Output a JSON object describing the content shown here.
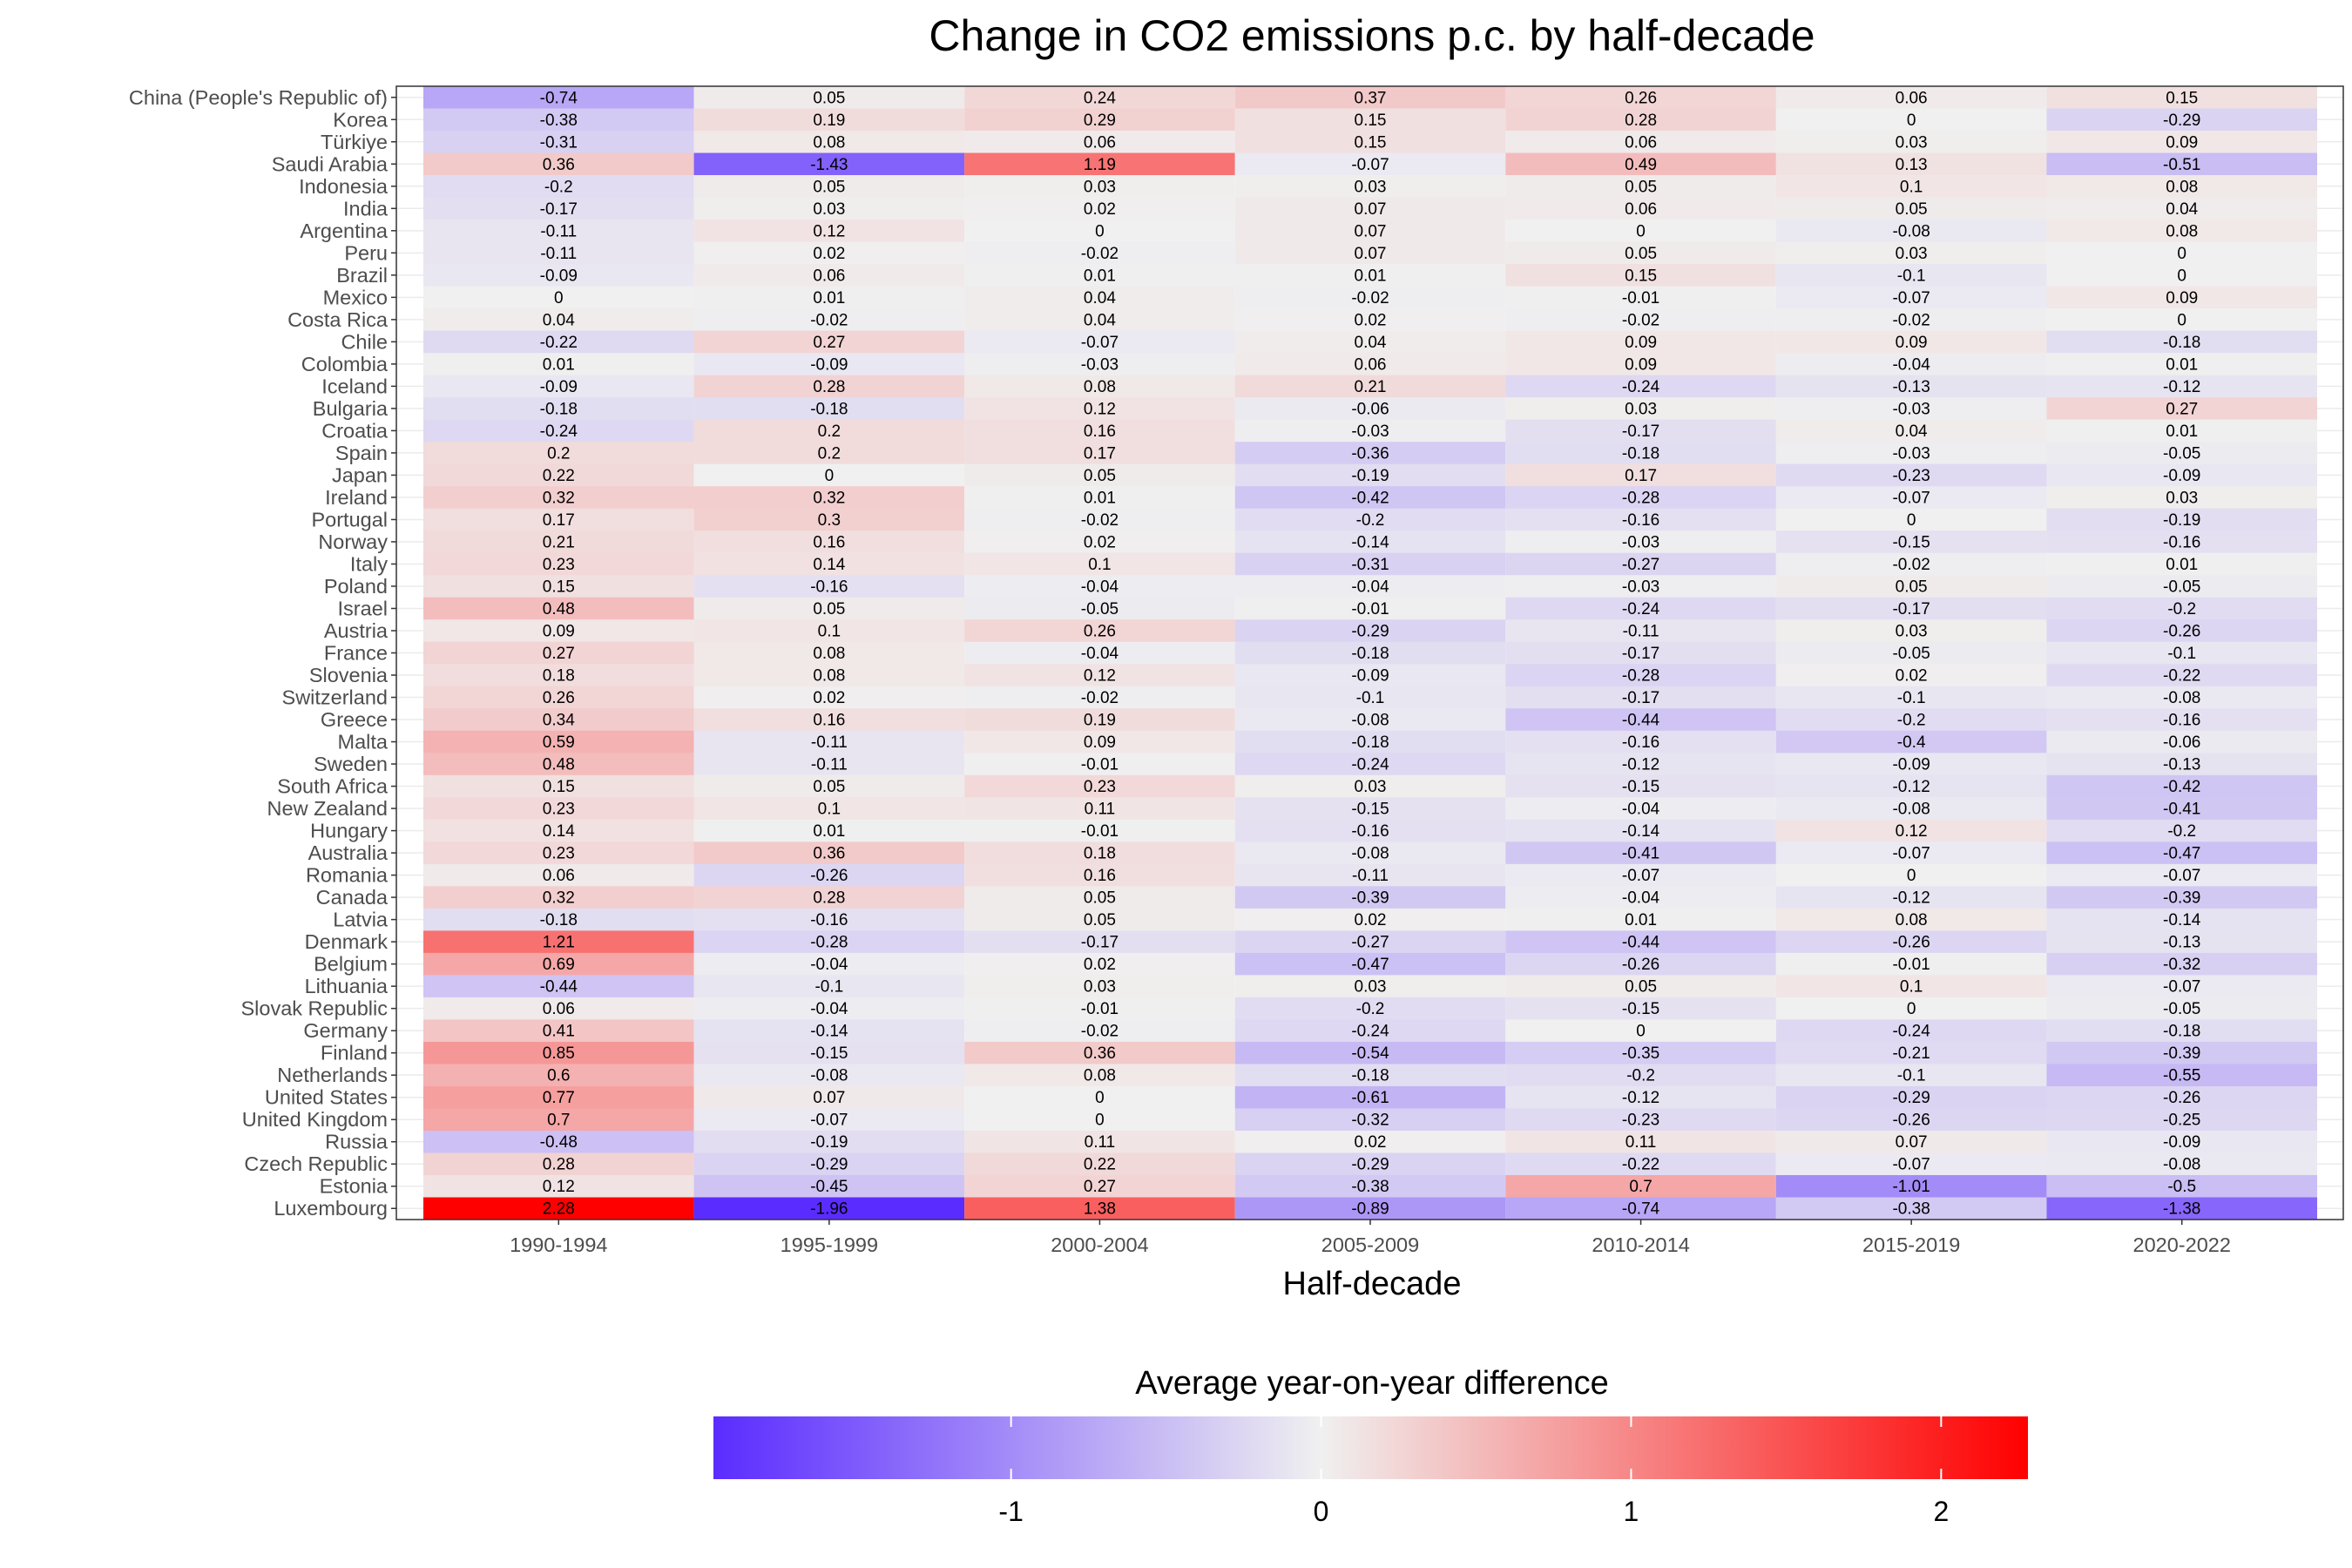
{
  "chart_data": {
    "type": "heatmap",
    "title": "Change in CO2 emissions p.c. by half-decade",
    "xlabel": "Half-decade",
    "ylabel": "",
    "legend": {
      "title": "Average year-on-year difference",
      "position": "bottom",
      "ticks": [
        -1,
        0,
        1,
        2
      ],
      "range": [
        -1.96,
        2.28
      ],
      "colors": {
        "low": "#5b2cff",
        "mid": "#f0f0f0",
        "high": "#ff0000"
      }
    },
    "x": [
      "1990-1994",
      "1995-1999",
      "2000-2004",
      "2005-2009",
      "2010-2014",
      "2015-2019",
      "2020-2022"
    ],
    "y": [
      "China (People's Republic of)",
      "Korea",
      "Türkiye",
      "Saudi Arabia",
      "Indonesia",
      "India",
      "Argentina",
      "Peru",
      "Brazil",
      "Mexico",
      "Costa Rica",
      "Chile",
      "Colombia",
      "Iceland",
      "Bulgaria",
      "Croatia",
      "Spain",
      "Japan",
      "Ireland",
      "Portugal",
      "Norway",
      "Italy",
      "Poland",
      "Israel",
      "Austria",
      "France",
      "Slovenia",
      "Switzerland",
      "Greece",
      "Malta",
      "Sweden",
      "South Africa",
      "New Zealand",
      "Hungary",
      "Australia",
      "Romania",
      "Canada",
      "Latvia",
      "Denmark",
      "Belgium",
      "Lithuania",
      "Slovak Republic",
      "Germany",
      "Finland",
      "Netherlands",
      "United States",
      "United Kingdom",
      "Russia",
      "Czech Republic",
      "Estonia",
      "Luxembourg"
    ],
    "values": [
      [
        -0.74,
        0.05,
        0.24,
        0.37,
        0.26,
        0.06,
        0.15
      ],
      [
        -0.38,
        0.19,
        0.29,
        0.15,
        0.28,
        0,
        -0.29
      ],
      [
        -0.31,
        0.08,
        0.06,
        0.15,
        0.06,
        0.03,
        0.09
      ],
      [
        0.36,
        -1.43,
        1.19,
        -0.07,
        0.49,
        0.13,
        -0.51
      ],
      [
        -0.2,
        0.05,
        0.03,
        0.03,
        0.05,
        0.1,
        0.08
      ],
      [
        -0.17,
        0.03,
        0.02,
        0.07,
        0.06,
        0.05,
        0.04
      ],
      [
        -0.11,
        0.12,
        0,
        0.07,
        0,
        -0.08,
        0.08
      ],
      [
        -0.11,
        0.02,
        -0.02,
        0.07,
        0.05,
        0.03,
        0
      ],
      [
        -0.09,
        0.06,
        0.01,
        0.01,
        0.15,
        -0.1,
        0
      ],
      [
        0,
        0.01,
        0.04,
        -0.02,
        -0.01,
        -0.07,
        0.09
      ],
      [
        0.04,
        -0.02,
        0.04,
        0.02,
        -0.02,
        -0.02,
        0
      ],
      [
        -0.22,
        0.27,
        -0.07,
        0.04,
        0.09,
        0.09,
        -0.18
      ],
      [
        0.01,
        -0.09,
        -0.03,
        0.06,
        0.09,
        -0.04,
        0.01
      ],
      [
        -0.09,
        0.28,
        0.08,
        0.21,
        -0.24,
        -0.13,
        -0.12
      ],
      [
        -0.18,
        -0.18,
        0.12,
        -0.06,
        0.03,
        -0.03,
        0.27
      ],
      [
        -0.24,
        0.2,
        0.16,
        -0.03,
        -0.17,
        0.04,
        0.01
      ],
      [
        0.2,
        0.2,
        0.17,
        -0.36,
        -0.18,
        -0.03,
        -0.05
      ],
      [
        0.22,
        0,
        0.05,
        -0.19,
        0.17,
        -0.23,
        -0.09
      ],
      [
        0.32,
        0.32,
        0.01,
        -0.42,
        -0.28,
        -0.07,
        0.03
      ],
      [
        0.17,
        0.3,
        -0.02,
        -0.2,
        -0.16,
        0,
        -0.19
      ],
      [
        0.21,
        0.16,
        0.02,
        -0.14,
        -0.03,
        -0.15,
        -0.16
      ],
      [
        0.23,
        0.14,
        0.1,
        -0.31,
        -0.27,
        -0.02,
        0.01
      ],
      [
        0.15,
        -0.16,
        -0.04,
        -0.04,
        -0.03,
        0.05,
        -0.05
      ],
      [
        0.48,
        0.05,
        -0.05,
        -0.01,
        -0.24,
        -0.17,
        -0.2
      ],
      [
        0.09,
        0.1,
        0.26,
        -0.29,
        -0.11,
        0.03,
        -0.26
      ],
      [
        0.27,
        0.08,
        -0.04,
        -0.18,
        -0.17,
        -0.05,
        -0.1
      ],
      [
        0.18,
        0.08,
        0.12,
        -0.09,
        -0.28,
        0.02,
        -0.22
      ],
      [
        0.26,
        0.02,
        -0.02,
        -0.1,
        -0.17,
        -0.1,
        -0.08
      ],
      [
        0.34,
        0.16,
        0.19,
        -0.08,
        -0.44,
        -0.2,
        -0.16
      ],
      [
        0.59,
        -0.11,
        0.09,
        -0.18,
        -0.16,
        -0.4,
        -0.06
      ],
      [
        0.48,
        -0.11,
        -0.01,
        -0.24,
        -0.12,
        -0.09,
        -0.13
      ],
      [
        0.15,
        0.05,
        0.23,
        0.03,
        -0.15,
        -0.12,
        -0.42
      ],
      [
        0.23,
        0.1,
        0.11,
        -0.15,
        -0.04,
        -0.08,
        -0.41
      ],
      [
        0.14,
        0.01,
        -0.01,
        -0.16,
        -0.14,
        0.12,
        -0.2
      ],
      [
        0.23,
        0.36,
        0.18,
        -0.08,
        -0.41,
        -0.07,
        -0.47
      ],
      [
        0.06,
        -0.26,
        0.16,
        -0.11,
        -0.07,
        0,
        -0.07
      ],
      [
        0.32,
        0.28,
        0.05,
        -0.39,
        -0.04,
        -0.12,
        -0.39
      ],
      [
        -0.18,
        -0.16,
        0.05,
        0.02,
        0.01,
        0.08,
        -0.14
      ],
      [
        1.21,
        -0.28,
        -0.17,
        -0.27,
        -0.44,
        -0.26,
        -0.13
      ],
      [
        0.69,
        -0.04,
        0.02,
        -0.47,
        -0.26,
        -0.01,
        -0.32
      ],
      [
        -0.44,
        -0.1,
        0.03,
        0.03,
        0.05,
        0.1,
        -0.07
      ],
      [
        0.06,
        -0.04,
        -0.01,
        -0.2,
        -0.15,
        0,
        -0.05
      ],
      [
        0.41,
        -0.14,
        -0.02,
        -0.24,
        0,
        -0.24,
        -0.18
      ],
      [
        0.85,
        -0.15,
        0.36,
        -0.54,
        -0.35,
        -0.21,
        -0.39
      ],
      [
        0.6,
        -0.08,
        0.08,
        -0.18,
        -0.2,
        -0.1,
        -0.55
      ],
      [
        0.77,
        0.07,
        0,
        -0.61,
        -0.12,
        -0.29,
        -0.26
      ],
      [
        0.7,
        -0.07,
        0,
        -0.32,
        -0.23,
        -0.26,
        -0.25
      ],
      [
        -0.48,
        -0.19,
        0.11,
        0.02,
        0.11,
        0.07,
        -0.09
      ],
      [
        0.28,
        -0.29,
        0.22,
        -0.29,
        -0.22,
        -0.07,
        -0.08
      ],
      [
        0.12,
        -0.45,
        0.27,
        -0.38,
        0.7,
        -1.01,
        -0.5
      ],
      [
        2.28,
        -1.96,
        1.38,
        -0.89,
        -0.74,
        -0.38,
        -1.38
      ]
    ]
  }
}
